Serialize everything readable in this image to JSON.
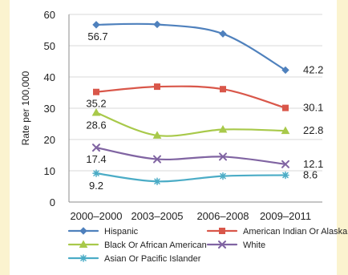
{
  "chart_data": {
    "type": "line",
    "ylabel": "Rate per 100,000",
    "ylim": [
      0,
      60
    ],
    "yticks": [
      0,
      10,
      20,
      30,
      40,
      50,
      60
    ],
    "categories": [
      "2000–2000",
      "2003–2005",
      "2006–2008",
      "2009–2011"
    ],
    "grid": true,
    "legend_position": "bottom",
    "series": [
      {
        "name": "Hispanic",
        "color": "#4f81bd",
        "marker": "diamond",
        "values": [
          56.7,
          56.8,
          53.8,
          42.2
        ],
        "labels": [
          "56.7",
          "",
          "",
          "42.2"
        ]
      },
      {
        "name": "American Indian Or Alaskan Native",
        "color": "#d9574a",
        "marker": "square",
        "values": [
          35.2,
          36.9,
          36.1,
          30.1
        ],
        "labels": [
          "35.2",
          "",
          "",
          "30.1"
        ]
      },
      {
        "name": "Black Or African American",
        "color": "#a8c94a",
        "marker": "triangle",
        "values": [
          28.6,
          21.3,
          23.2,
          22.8
        ],
        "labels": [
          "28.6",
          "",
          "",
          "22.8"
        ]
      },
      {
        "name": "White",
        "color": "#8064a2",
        "marker": "x",
        "values": [
          17.4,
          13.7,
          14.5,
          12.1
        ],
        "labels": [
          "17.4",
          "",
          "",
          "12.1"
        ]
      },
      {
        "name": "Asian Or Pacific Islander",
        "color": "#4bacc6",
        "marker": "star",
        "values": [
          9.2,
          6.6,
          8.3,
          8.6
        ],
        "labels": [
          "9.2",
          "",
          "",
          "8.6"
        ]
      }
    ]
  }
}
